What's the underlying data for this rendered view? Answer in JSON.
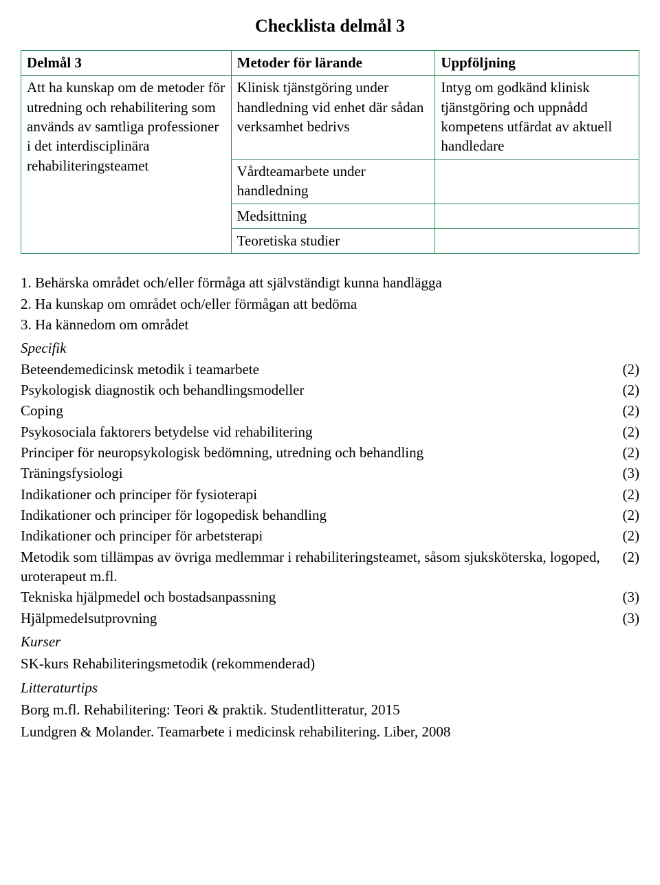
{
  "title": "Checklista delmål 3",
  "table": {
    "border_color": "#2e8b57",
    "col_widths": [
      "34%",
      "33%",
      "33%"
    ],
    "headers": [
      "Delmål 3",
      "Metoder för lärande",
      "Uppföljning"
    ],
    "col0_body": "Att ha kunskap om de metoder för utredning och rehabilitering som används av samtliga professioner i det interdisciplinära rehabiliteringsteamet",
    "col1_rows": [
      "Klinisk tjänstgöring under handledning vid enhet där sådan verksamhet bedrivs",
      "Vårdteamarbete under handledning",
      "Medsittning",
      "Teoretiska studier"
    ],
    "col2_body": "Intyg om godkänd klinisk tjänstgöring och uppnådd kompetens utfärdat av aktuell handledare"
  },
  "numbered": [
    "1. Behärska området och/eller förmåga att självständigt kunna handlägga",
    "2. Ha kunskap om området och/eller förmågan att bedöma",
    "3. Ha kännedom om området"
  ],
  "specifik_heading": "Specifik",
  "specifik_items": [
    {
      "label": "Beteendemedicinsk metodik i teamarbete",
      "value": "(2)"
    },
    {
      "label": "Psykologisk diagnostik och behandlingsmodeller",
      "value": "(2)"
    },
    {
      "label": "Coping",
      "value": "(2)"
    },
    {
      "label": "Psykosociala faktorers betydelse vid rehabilitering",
      "value": "(2)"
    },
    {
      "label": "Principer för neuropsykologisk bedömning, utredning och behandling",
      "value": "(2)"
    },
    {
      "label": "Träningsfysiologi",
      "value": "(3)"
    },
    {
      "label": "Indikationer och principer för fysioterapi",
      "value": "(2)"
    },
    {
      "label": "Indikationer och principer för logopedisk behandling",
      "value": "(2)"
    },
    {
      "label": "Indikationer och principer för arbetsterapi",
      "value": "(2)"
    },
    {
      "label": "Metodik som tillämpas av övriga medlemmar i rehabiliteringsteamet, såsom sjuksköterska, logoped, uroterapeut m.fl.",
      "value": "(2)"
    },
    {
      "label": "Tekniska hjälpmedel och bostadsanpassning",
      "value": "(3)"
    },
    {
      "label": "Hjälpmedelsutprovning",
      "value": "(3)"
    }
  ],
  "kurser_heading": "Kurser",
  "kurser_text": "SK-kurs Rehabiliteringsmetodik (rekommenderad)",
  "litt_heading": "Litteraturtips",
  "litt_lines": [
    "Borg m.fl. Rehabilitering: Teori & praktik. Studentlitteratur, 2015",
    "Lundgren & Molander. Teamarbete i medicinsk rehabilitering. Liber, 2008"
  ]
}
